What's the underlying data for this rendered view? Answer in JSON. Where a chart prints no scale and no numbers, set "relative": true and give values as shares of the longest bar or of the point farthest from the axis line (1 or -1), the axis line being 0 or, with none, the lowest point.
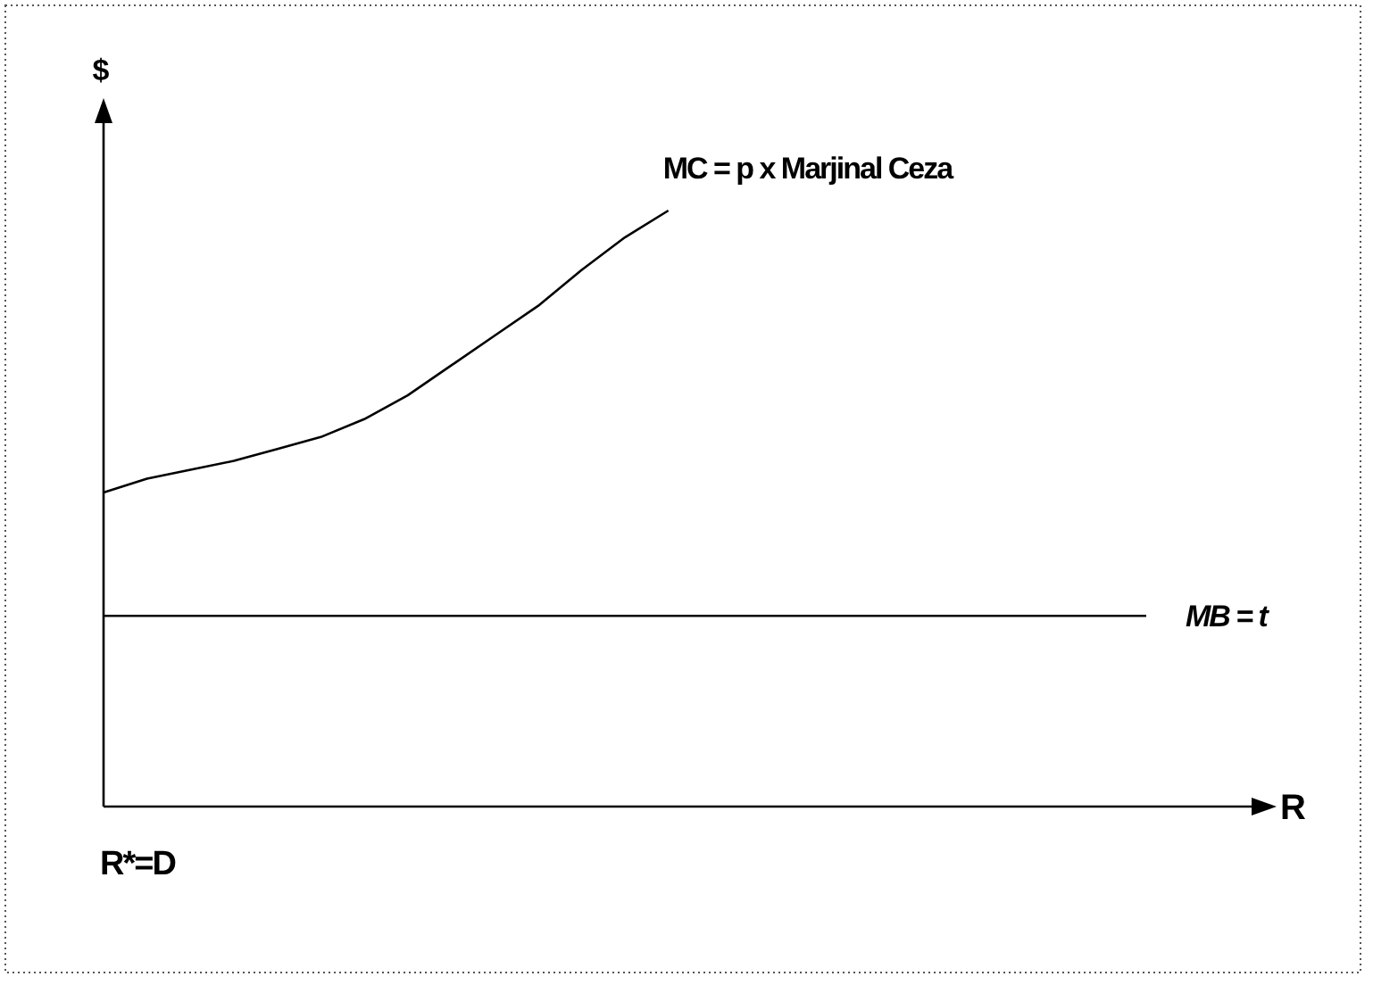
{
  "chart_data": {
    "type": "line",
    "relative": true,
    "xlabel": "R",
    "ylabel": "$",
    "annotations": [
      "R*=D"
    ],
    "legend": false,
    "line_style": "solid",
    "categories": [
      null,
      null,
      null,
      null,
      null,
      null,
      null,
      null,
      null,
      null,
      null,
      null,
      null,
      null,
      null,
      null,
      null,
      null,
      null,
      null,
      null,
      null,
      null,
      null,
      null,
      null,
      null,
      null
    ],
    "series": [
      {
        "name": "MC = p x Marjinal Ceza",
        "color": "#000000",
        "values": [
          0.527,
          0.55,
          0.565,
          0.58,
          0.6,
          0.62,
          0.65,
          0.69,
          0.74,
          0.79,
          0.84,
          0.9,
          0.955,
          1,
          null,
          null,
          null,
          null,
          null,
          null,
          null,
          null,
          null,
          null,
          null,
          null,
          null,
          null
        ]
      },
      {
        "name": "MB = t",
        "color": "#000000",
        "values": [
          0.32,
          0.32,
          0.32,
          0.32,
          0.32,
          0.32,
          0.32,
          0.32,
          0.32,
          0.32,
          0.32,
          0.32,
          0.32,
          0.32,
          0.32,
          0.32,
          0.32,
          0.32,
          0.32,
          0.32,
          0.32,
          0.32,
          0.32,
          0.32,
          0.32,
          null,
          null,
          null
        ]
      }
    ]
  }
}
